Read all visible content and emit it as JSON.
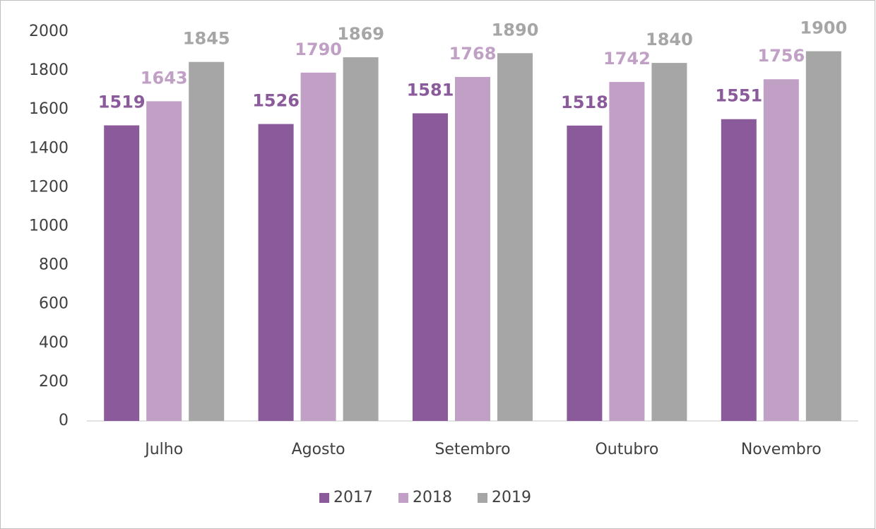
{
  "chart_data": {
    "type": "bar",
    "categories": [
      "Julho",
      "Agosto",
      "Setembro",
      "Outubro",
      "Novembro"
    ],
    "series": [
      {
        "name": "2017",
        "color": "#8a5a9b",
        "values": [
          1519,
          1526,
          1581,
          1518,
          1551
        ]
      },
      {
        "name": "2018",
        "color": "#c1a0c5",
        "values": [
          1643,
          1790,
          1768,
          1742,
          1756
        ]
      },
      {
        "name": "2019",
        "color": "#a6a6a6",
        "values": [
          1845,
          1869,
          1890,
          1840,
          1900
        ]
      }
    ],
    "ylim": [
      0,
      2000
    ],
    "yticks": [
      0,
      200,
      400,
      600,
      800,
      1000,
      1200,
      1400,
      1600,
      1800,
      2000
    ],
    "grid": false,
    "legend": "bottom"
  }
}
